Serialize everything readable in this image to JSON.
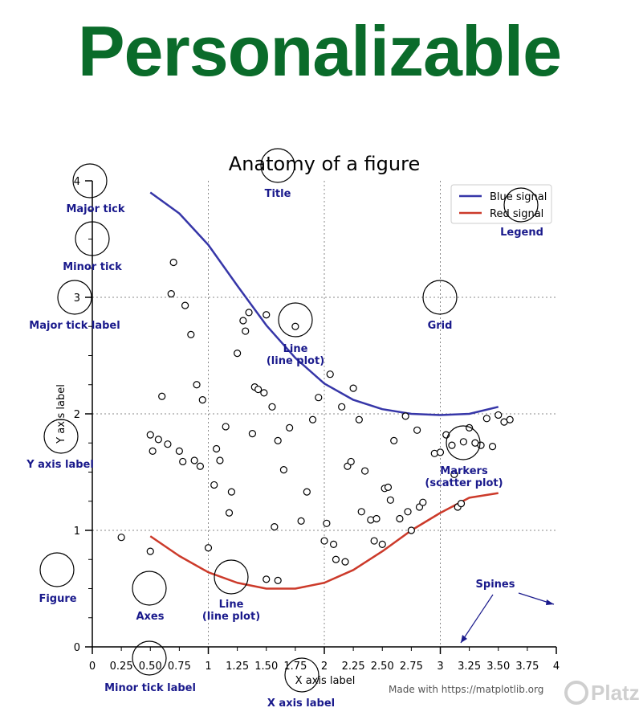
{
  "banner": {
    "heading": "Personalizable",
    "heading_color": "#0a6b2a"
  },
  "chart_data": {
    "type": "line",
    "title": "Anatomy of a figure",
    "xlabel": "X axis label",
    "ylabel": "Y axis label",
    "xlim": [
      0,
      4
    ],
    "ylim": [
      0,
      4
    ],
    "grid": true,
    "legend_position": "top-right",
    "x_major_ticks": [
      "0",
      "1",
      "2",
      "3",
      "4"
    ],
    "x_minor_ticks": [
      "0.25",
      "0.50",
      "0.75",
      "1.25",
      "1.50",
      "1.75",
      "2.25",
      "2.50",
      "2.75",
      "3.25",
      "3.50",
      "3.75"
    ],
    "y_major_ticks": [
      "0",
      "1",
      "2",
      "3",
      "4"
    ],
    "series": [
      {
        "name": "Blue signal",
        "kind": "line",
        "color": "#3636a8",
        "x": [
          0.5,
          0.75,
          1.0,
          1.25,
          1.5,
          1.75,
          2.0,
          2.25,
          2.5,
          2.75,
          3.0,
          3.25,
          3.5
        ],
        "y": [
          3.9,
          3.72,
          3.45,
          3.1,
          2.76,
          2.48,
          2.26,
          2.12,
          2.04,
          2.0,
          1.99,
          2.0,
          2.06
        ]
      },
      {
        "name": "Red signal",
        "kind": "line",
        "color": "#cc3a2a",
        "x": [
          0.5,
          0.75,
          1.0,
          1.25,
          1.5,
          1.75,
          2.0,
          2.25,
          2.5,
          2.75,
          3.0,
          3.25,
          3.5
        ],
        "y": [
          0.95,
          0.78,
          0.64,
          0.55,
          0.5,
          0.5,
          0.55,
          0.66,
          0.82,
          1.0,
          1.15,
          1.28,
          1.32
        ]
      },
      {
        "name": "",
        "kind": "scatter",
        "color": "#000000",
        "points": [
          [
            0.7,
            3.3
          ],
          [
            0.68,
            3.03
          ],
          [
            0.8,
            2.93
          ],
          [
            0.85,
            2.68
          ],
          [
            0.9,
            2.25
          ],
          [
            0.95,
            2.12
          ],
          [
            0.6,
            2.15
          ],
          [
            0.5,
            1.82
          ],
          [
            0.52,
            1.68
          ],
          [
            0.57,
            1.78
          ],
          [
            0.65,
            1.74
          ],
          [
            0.75,
            1.68
          ],
          [
            0.78,
            1.59
          ],
          [
            0.88,
            1.6
          ],
          [
            0.93,
            1.55
          ],
          [
            1.05,
            1.39
          ],
          [
            1.07,
            1.7
          ],
          [
            1.1,
            1.6
          ],
          [
            1.15,
            1.89
          ],
          [
            1.18,
            1.15
          ],
          [
            1.2,
            1.33
          ],
          [
            1.25,
            2.52
          ],
          [
            1.3,
            2.8
          ],
          [
            1.32,
            2.71
          ],
          [
            1.35,
            2.87
          ],
          [
            1.4,
            2.23
          ],
          [
            1.38,
            1.83
          ],
          [
            1.43,
            2.21
          ],
          [
            1.48,
            2.18
          ],
          [
            1.5,
            2.85
          ],
          [
            1.55,
            2.06
          ],
          [
            1.57,
            1.03
          ],
          [
            1.6,
            1.77
          ],
          [
            1.65,
            1.52
          ],
          [
            1.7,
            1.88
          ],
          [
            1.75,
            2.75
          ],
          [
            1.8,
            1.08
          ],
          [
            1.85,
            1.33
          ],
          [
            1.9,
            1.95
          ],
          [
            1.95,
            2.14
          ],
          [
            2.0,
            0.91
          ],
          [
            2.02,
            1.06
          ],
          [
            2.05,
            2.34
          ],
          [
            2.08,
            0.88
          ],
          [
            2.1,
            0.75
          ],
          [
            2.15,
            2.06
          ],
          [
            2.18,
            0.73
          ],
          [
            2.2,
            1.55
          ],
          [
            2.23,
            1.59
          ],
          [
            2.25,
            2.22
          ],
          [
            2.3,
            1.95
          ],
          [
            2.32,
            1.16
          ],
          [
            2.35,
            1.51
          ],
          [
            2.4,
            1.09
          ],
          [
            2.43,
            0.91
          ],
          [
            2.45,
            1.1
          ],
          [
            2.5,
            0.88
          ],
          [
            2.52,
            1.36
          ],
          [
            2.55,
            1.37
          ],
          [
            2.57,
            1.26
          ],
          [
            2.6,
            1.77
          ],
          [
            2.65,
            1.1
          ],
          [
            2.7,
            1.98
          ],
          [
            2.72,
            1.16
          ],
          [
            2.75,
            1.0
          ],
          [
            2.8,
            1.86
          ],
          [
            2.82,
            1.2
          ],
          [
            2.85,
            1.24
          ],
          [
            0.25,
            0.94
          ],
          [
            0.5,
            0.82
          ],
          [
            1.0,
            0.85
          ],
          [
            2.95,
            1.66
          ],
          [
            3.0,
            1.67
          ],
          [
            3.05,
            1.82
          ],
          [
            3.1,
            1.73
          ],
          [
            3.15,
            1.2
          ],
          [
            3.2,
            1.76
          ],
          [
            3.25,
            1.88
          ],
          [
            3.3,
            1.75
          ],
          [
            3.35,
            1.73
          ],
          [
            3.4,
            1.96
          ],
          [
            3.45,
            1.72
          ],
          [
            3.5,
            1.99
          ],
          [
            3.55,
            1.93
          ],
          [
            3.6,
            1.95
          ],
          [
            3.12,
            1.48
          ],
          [
            3.18,
            1.23
          ],
          [
            1.5,
            0.58
          ],
          [
            1.6,
            0.57
          ]
        ]
      }
    ]
  },
  "annotations": [
    {
      "id": "title",
      "label": "Title"
    },
    {
      "id": "major-tick",
      "label": "Major tick"
    },
    {
      "id": "minor-tick",
      "label": "Minor tick"
    },
    {
      "id": "major-tick-label",
      "label": "Major tick label"
    },
    {
      "id": "grid",
      "label": "Grid"
    },
    {
      "id": "legend",
      "label": "Legend"
    },
    {
      "id": "line-blue",
      "label": "Line\n(line plot)"
    },
    {
      "id": "y-axis-label",
      "label": "Y axis label"
    },
    {
      "id": "markers",
      "label": "Markers\n(scatter plot)"
    },
    {
      "id": "figure",
      "label": "Figure"
    },
    {
      "id": "axes",
      "label": "Axes"
    },
    {
      "id": "line-red",
      "label": "Line\n(line plot)"
    },
    {
      "id": "spines",
      "label": "Spines"
    },
    {
      "id": "minor-tick-label",
      "label": "Minor tick label"
    },
    {
      "id": "x-axis-label",
      "label": "X axis label"
    }
  ],
  "footer": {
    "credit": "Made with https://matplotlib.org",
    "brand": "Platzi"
  },
  "colors": {
    "annotation": "#1a1a8c",
    "grid": "#888888"
  }
}
